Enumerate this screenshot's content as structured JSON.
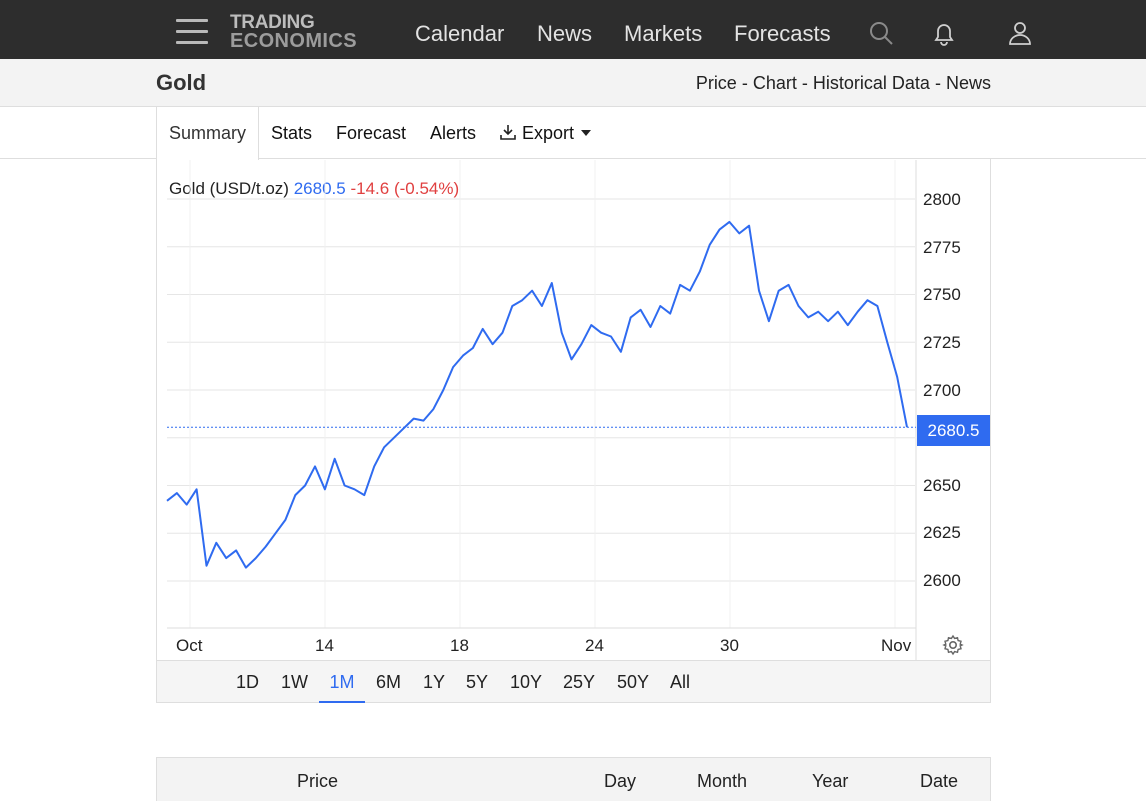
{
  "nav": {
    "logo_line1": "TRADING",
    "logo_line2": "ECONOMICS",
    "links": [
      "Calendar",
      "News",
      "Markets",
      "Forecasts"
    ],
    "icons": [
      "search-icon",
      "bell-icon",
      "user-icon"
    ]
  },
  "header": {
    "title": "Gold",
    "links": [
      "Price",
      "Chart",
      "Historical Data",
      "News"
    ],
    "separator": "-"
  },
  "tabs": [
    "Summary",
    "Stats",
    "Forecast",
    "Alerts",
    "Export"
  ],
  "chart": {
    "series_label": "Gold (USD/t.oz)",
    "price": "2680.5",
    "change": "-14.6",
    "change_pct": "(-0.54%)",
    "price_tag": "2680.5",
    "line_color": "#2f6bf0"
  },
  "chart_data": {
    "type": "line",
    "yticks": [
      "2800",
      "2775",
      "2750",
      "2725",
      "2700",
      "2650",
      "2625",
      "2600"
    ],
    "xticks": [
      "Oct",
      "14",
      "18",
      "24",
      "30",
      "Nov"
    ],
    "ylim": [
      2580,
      2810
    ],
    "current_value": 2680.5,
    "series": [
      {
        "x_index": [
          0,
          1,
          2,
          3,
          4,
          5,
          6,
          7,
          8,
          9,
          10,
          11,
          12,
          13,
          14,
          15,
          16,
          17,
          18,
          19,
          20,
          21,
          22,
          23,
          24,
          25,
          26,
          27,
          28,
          29,
          30,
          31,
          32,
          33,
          34,
          35,
          36,
          37,
          38,
          39,
          40,
          41,
          42,
          43,
          44,
          45,
          46,
          47,
          48,
          49,
          50,
          51,
          52,
          53,
          54,
          55,
          56,
          57,
          58,
          59,
          60,
          61,
          62,
          63,
          64,
          65,
          66,
          67,
          68,
          69,
          70,
          71,
          72,
          73,
          74,
          75
        ],
        "values": [
          2642,
          2646,
          2640,
          2648,
          2608,
          2620,
          2612,
          2616,
          2607,
          2612,
          2618,
          2625,
          2632,
          2645,
          2650,
          2660,
          2648,
          2664,
          2650,
          2648,
          2645,
          2660,
          2670,
          2675,
          2680,
          2685,
          2684,
          2690,
          2700,
          2712,
          2718,
          2722,
          2732,
          2724,
          2730,
          2744,
          2747,
          2752,
          2744,
          2756,
          2730,
          2716,
          2724,
          2734,
          2730,
          2728,
          2720,
          2738,
          2742,
          2733,
          2744,
          2740,
          2755,
          2752,
          2762,
          2776,
          2784,
          2788,
          2782,
          2786,
          2752,
          2736,
          2752,
          2755,
          2744,
          2738,
          2741,
          2736,
          2741,
          2734,
          2741,
          2747,
          2744,
          2725,
          2707,
          2680.5
        ]
      }
    ],
    "grid": true
  },
  "ranges": [
    "1D",
    "1W",
    "1M",
    "6M",
    "1Y",
    "5Y",
    "10Y",
    "25Y",
    "50Y",
    "All"
  ],
  "active_range": "1M",
  "table": {
    "headers": [
      "Price",
      "Day",
      "Month",
      "Year",
      "Date"
    ]
  }
}
